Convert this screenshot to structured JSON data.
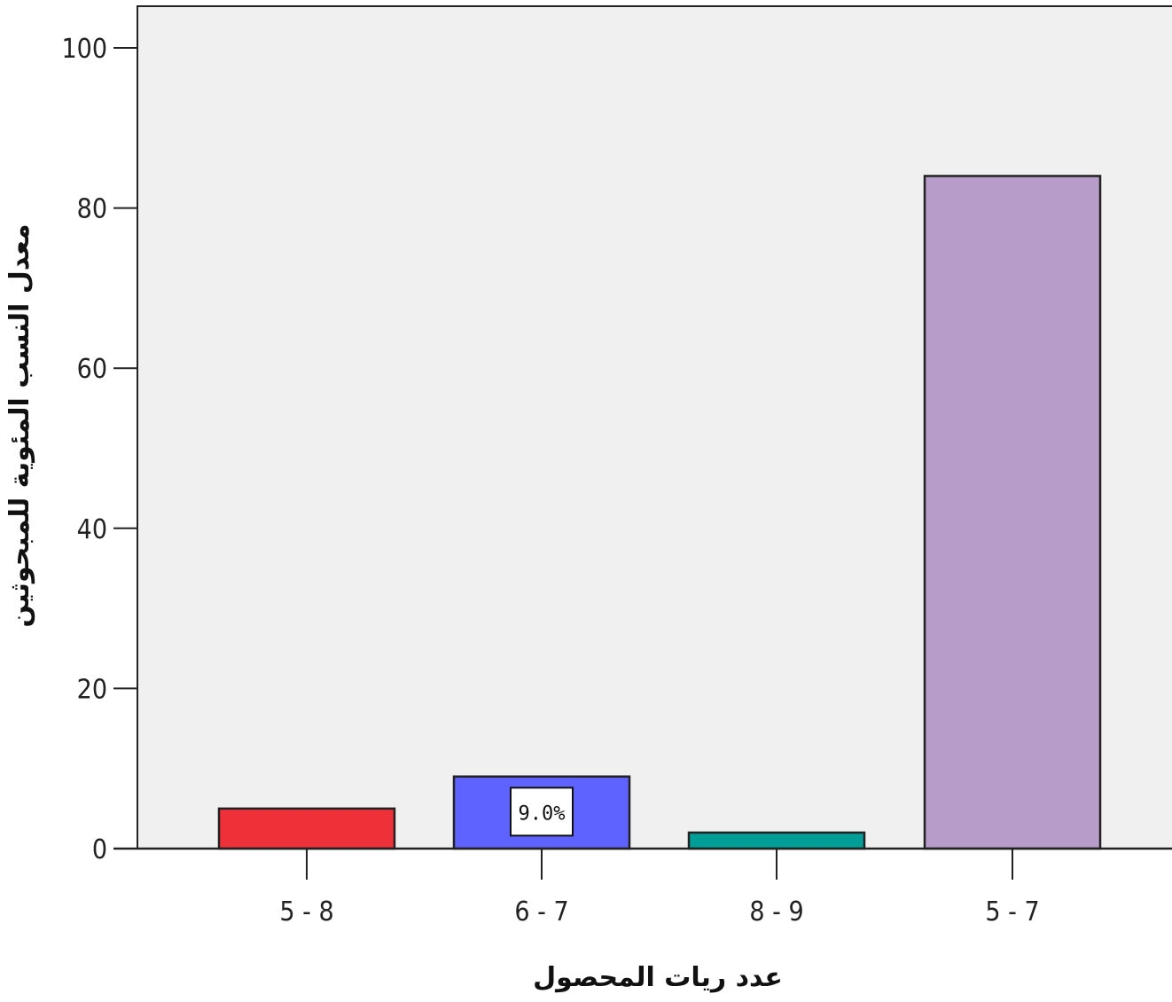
{
  "chart_data": {
    "type": "bar",
    "categories": [
      "5 - 8",
      "6 - 7",
      "8 - 9",
      "5 - 7"
    ],
    "values": [
      5,
      9,
      2,
      84
    ],
    "bar_colors": [
      "#ee3139",
      "#5e62ff",
      "#009e97",
      "#b79bc9"
    ],
    "plot_background": "#f0f0f0",
    "data_labels": [
      {
        "index": 1,
        "text": "9.0%"
      }
    ],
    "xlabel": "عدد ريات المحصول",
    "ylabel": "معدل النسب المئوية للمبحوثين",
    "ylim": [
      0,
      100
    ],
    "yticks": [
      0,
      20,
      40,
      60,
      80,
      100
    ],
    "grid": false,
    "legend": "none"
  }
}
